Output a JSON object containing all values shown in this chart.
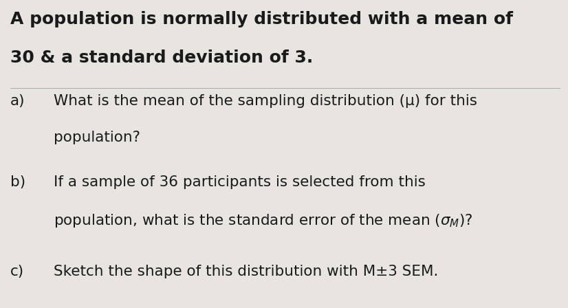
{
  "background_color": "#e8e5e1",
  "text_color": "#1a1a1a",
  "title_line1": "A population is normally distributed with a mean of",
  "title_line2": "30 & a standard deviation of 3.",
  "qa_label": "a)",
  "qa_line1": "What is the mean of the sampling distribution (μ) for this",
  "qa_line2": "population?",
  "qb_label": "b)",
  "qb_line1": "If a sample of 36 participants is selected from this",
  "qb_line2_pre": "population, what is the standard error of the mean (σ",
  "qb_subscript": "M",
  "qb_line2_post": ")?",
  "qc_label": "c)",
  "qc_line": "Sketch the shape of this distribution with M±3 SEM.",
  "fs_title": 18,
  "fs_body": 15.5,
  "separator_color": "#aaaaaa"
}
